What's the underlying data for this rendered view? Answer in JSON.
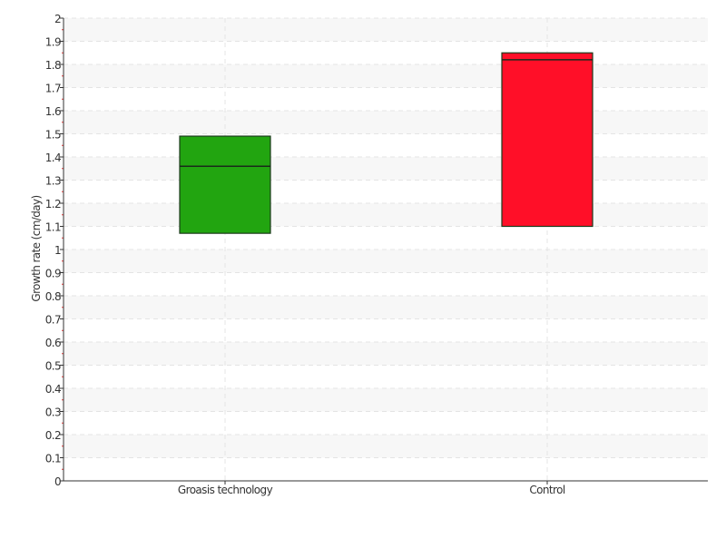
{
  "chart_data": {
    "type": "box",
    "title": "",
    "xlabel": "",
    "ylabel": "Growth rate (cm/day)",
    "ylim": [
      0,
      2
    ],
    "yticks": [
      "0",
      "0.1",
      "0.2",
      "0.3",
      "0.4",
      "0.5",
      "0.6",
      "0.7",
      "0.8",
      "0.9",
      "1",
      "1.1",
      "1.2",
      "1.3",
      "1.4",
      "1.5",
      "1.6",
      "1.7",
      "1.8",
      "1.9",
      "2"
    ],
    "grid": true,
    "categories": [
      "Groasis technology",
      "Control"
    ],
    "boxes": [
      {
        "category": "Groasis technology",
        "q1": 1.07,
        "median": 1.36,
        "q3": 1.49,
        "color": "#22a510"
      },
      {
        "category": "Control",
        "q1": 1.1,
        "median": 1.82,
        "q3": 1.85,
        "color": "#ff0f28"
      }
    ]
  }
}
